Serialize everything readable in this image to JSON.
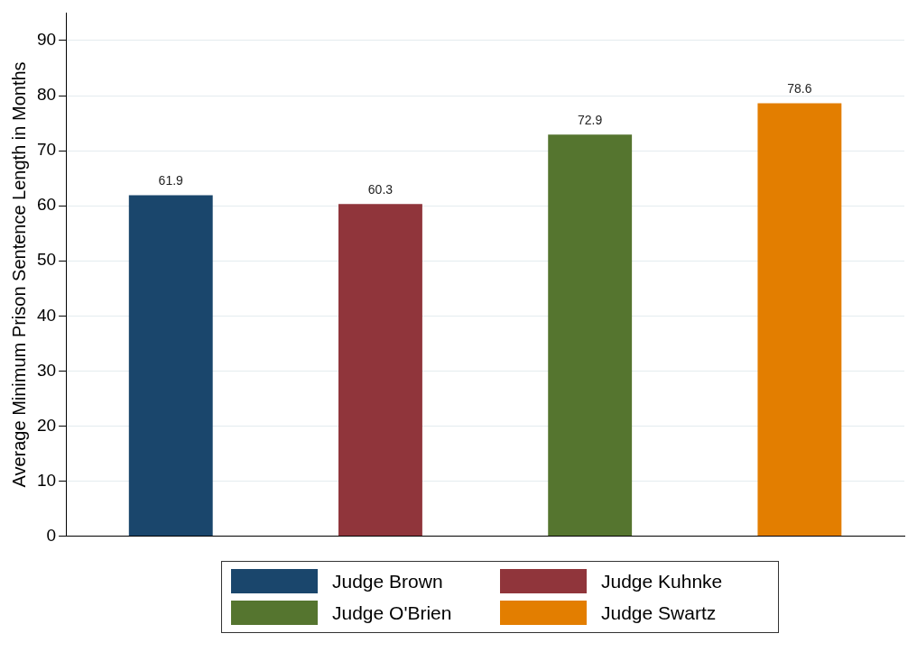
{
  "chart_data": {
    "type": "bar",
    "ylabel": "Average Minimum Prison Sentence Length in Months",
    "categories": [
      null,
      null,
      null,
      null
    ],
    "series": [
      {
        "name": "Judge Brown",
        "color": "#1a466c",
        "values": [
          61.9,
          null,
          null,
          null
        ]
      },
      {
        "name": "Judge Kuhnke",
        "color": "#90353b",
        "values": [
          null,
          60.3,
          null,
          null
        ]
      },
      {
        "name": "Judge O'Brien",
        "color": "#55752f",
        "values": [
          null,
          null,
          72.9,
          null
        ]
      },
      {
        "name": "Judge Swartz",
        "color": "#e37e00",
        "values": [
          null,
          null,
          null,
          78.6
        ]
      }
    ],
    "ylim": [
      0,
      95
    ],
    "yticks": [
      0,
      10,
      20,
      30,
      40,
      50,
      60,
      70,
      80,
      90
    ],
    "grid": "y",
    "legend": "bottom",
    "data_labels": true
  }
}
